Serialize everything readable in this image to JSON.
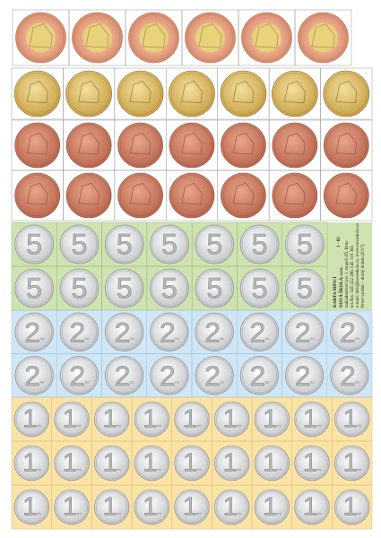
{
  "sheet": {
    "code": "1 - 63",
    "title": "KARTA MINCÍ",
    "publisher": "NOVÁ ŠKOLA, s.r.o.",
    "lines": [
      "nakladatelství pro 1. stupeň ZŠ, Brno",
      "tel./fax: 545 222 286, 545 110 365",
      "e-mail: info@novaskola.cz, www.novaskola.cz",
      "První vydání – druhý dotisk (2017)"
    ]
  },
  "coins": {
    "five": {
      "numeral": "5"
    },
    "two": {
      "numeral": "2",
      "unit": "Kč"
    },
    "one": {
      "numeral": "1",
      "unit": "Kč"
    }
  }
}
